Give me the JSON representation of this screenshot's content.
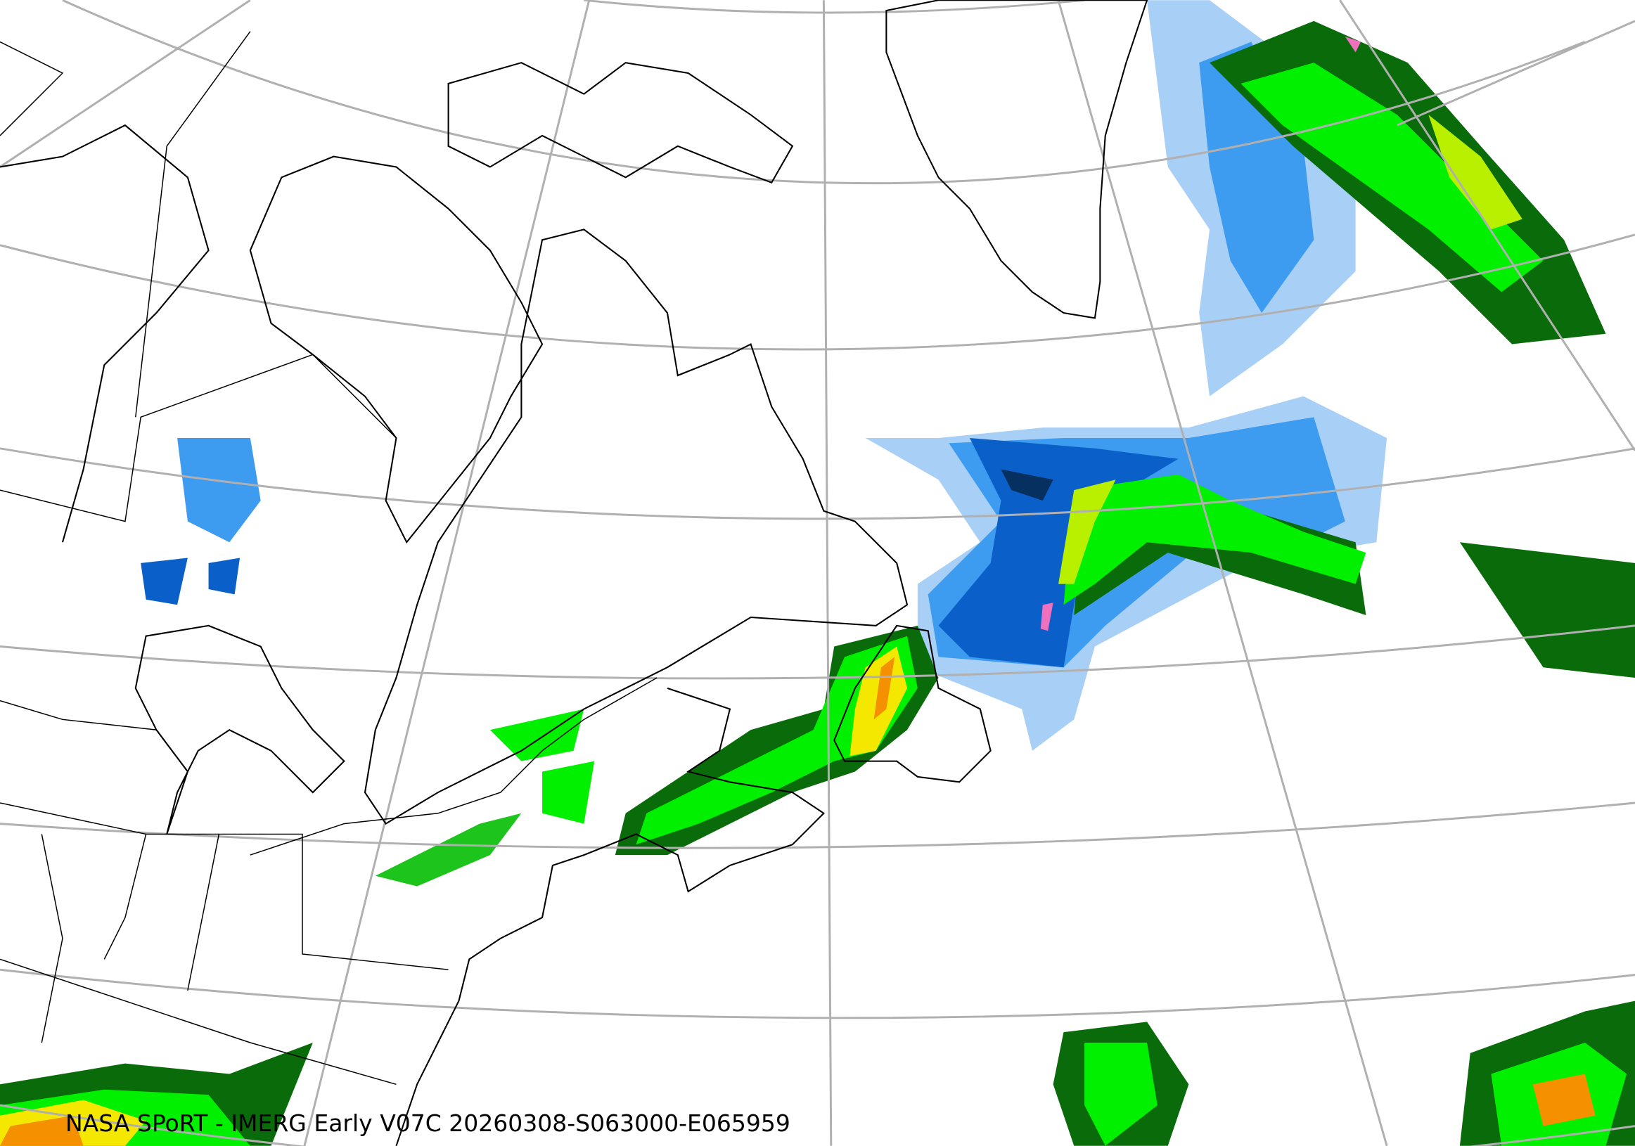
{
  "caption": "NASA SPoRT - IMERG Early V07C 20260308-S063000-E065959",
  "colors": {
    "light_blue": "#a8cff5",
    "mid_blue": "#3d9bf0",
    "blue": "#0a5fc8",
    "dark_blue": "#05305f",
    "dark_green": "#0a6b0a",
    "green": "#1cc41c",
    "bright_green": "#00f000",
    "yellow_green": "#b8f000",
    "yellow": "#f5e800",
    "orange": "#f59000",
    "red": "#e01010",
    "pink": "#f070c0",
    "grid": "#b0b0b0",
    "coast": "#000000"
  }
}
